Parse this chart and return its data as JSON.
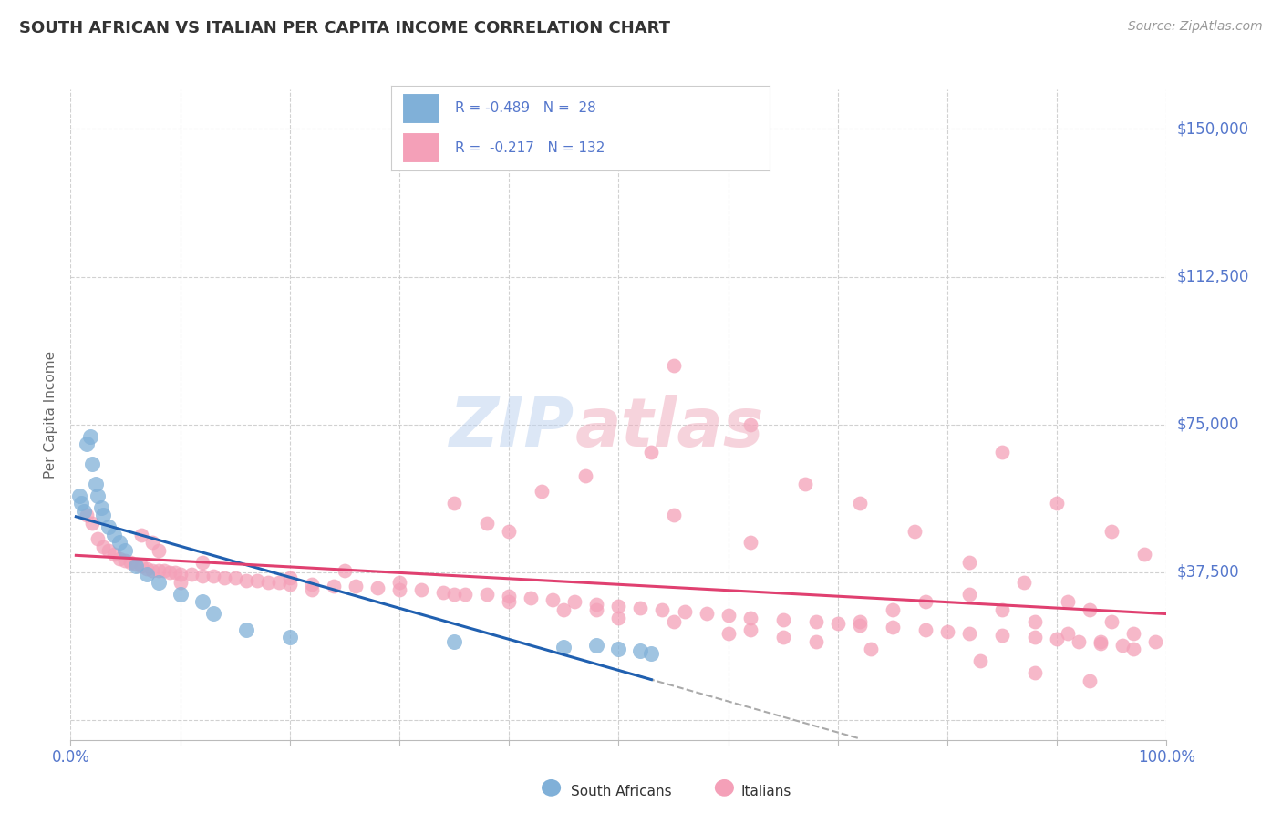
{
  "title": "SOUTH AFRICAN VS ITALIAN PER CAPITA INCOME CORRELATION CHART",
  "source": "Source: ZipAtlas.com",
  "ylabel": "Per Capita Income",
  "xlim": [
    0.0,
    100.0
  ],
  "ylim": [
    -5000,
    160000
  ],
  "yticks": [
    0,
    37500,
    75000,
    112500,
    150000
  ],
  "ytick_labels": [
    "",
    "$37,500",
    "$75,000",
    "$112,500",
    "$150,000"
  ],
  "background_color": "#ffffff",
  "grid_color": "#cccccc",
  "blue_color": "#80b0d8",
  "pink_color": "#f4a0b8",
  "blue_line_color": "#2060b0",
  "pink_line_color": "#e04070",
  "axis_label_color": "#5577cc",
  "south_africans_x": [
    0.8,
    1.0,
    1.2,
    1.5,
    1.8,
    2.0,
    2.3,
    2.5,
    2.8,
    3.0,
    3.5,
    4.0,
    4.5,
    5.0,
    6.0,
    7.0,
    8.0,
    10.0,
    12.0,
    13.0,
    16.0,
    20.0,
    35.0,
    45.0,
    48.0,
    50.0,
    52.0,
    53.0
  ],
  "south_africans_y": [
    57000,
    55000,
    53000,
    70000,
    72000,
    65000,
    60000,
    57000,
    54000,
    52000,
    49000,
    47000,
    45000,
    43000,
    39000,
    37000,
    35000,
    32000,
    30000,
    27000,
    23000,
    21000,
    20000,
    18500,
    19000,
    18000,
    17500,
    17000
  ],
  "italians_x": [
    1.5,
    2.0,
    2.5,
    3.0,
    3.5,
    4.0,
    4.5,
    5.0,
    5.5,
    6.0,
    6.5,
    7.0,
    7.5,
    8.0,
    8.5,
    9.0,
    9.5,
    10.0,
    11.0,
    12.0,
    13.0,
    14.0,
    15.0,
    16.0,
    17.0,
    18.0,
    19.0,
    20.0,
    22.0,
    24.0,
    26.0,
    28.0,
    30.0,
    32.0,
    34.0,
    36.0,
    38.0,
    40.0,
    42.0,
    44.0,
    46.0,
    48.0,
    50.0,
    52.0,
    54.0,
    56.0,
    58.0,
    60.0,
    62.0,
    65.0,
    68.0,
    70.0,
    72.0,
    75.0,
    78.0,
    80.0,
    82.0,
    85.0,
    88.0,
    90.0,
    92.0,
    94.0,
    96.0,
    35.0,
    38.0,
    43.0,
    47.0,
    53.0,
    55.0,
    62.0,
    55.0,
    62.0,
    67.0,
    72.0,
    77.0,
    82.0,
    87.0,
    91.0,
    93.0,
    95.0,
    97.0,
    99.0,
    6.5,
    7.5,
    12.0,
    20.0,
    25.0,
    30.0,
    35.0,
    40.0,
    45.0,
    50.0,
    55.0,
    62.0,
    65.0,
    68.0,
    72.0,
    75.0,
    78.0,
    82.0,
    85.0,
    88.0,
    91.0,
    94.0,
    97.0,
    40.0,
    10.0,
    8.0,
    85.0,
    90.0,
    95.0,
    98.0,
    22.0,
    48.0,
    60.0,
    73.0,
    83.0,
    88.0,
    93.0
  ],
  "italians_y": [
    52000,
    50000,
    46000,
    44000,
    43000,
    42000,
    41000,
    40500,
    40000,
    39500,
    39000,
    38500,
    38000,
    38000,
    38000,
    37500,
    37500,
    37000,
    37000,
    36500,
    36500,
    36000,
    36000,
    35500,
    35500,
    35000,
    35000,
    34500,
    34500,
    34000,
    34000,
    33500,
    33000,
    33000,
    32500,
    32000,
    32000,
    31500,
    31000,
    30500,
    30000,
    29500,
    29000,
    28500,
    28000,
    27500,
    27000,
    26500,
    26000,
    25500,
    25000,
    24500,
    24000,
    23500,
    23000,
    22500,
    22000,
    21500,
    21000,
    20500,
    20000,
    19500,
    19000,
    55000,
    50000,
    58000,
    62000,
    68000,
    52000,
    45000,
    90000,
    75000,
    60000,
    55000,
    48000,
    40000,
    35000,
    30000,
    28000,
    25000,
    22000,
    20000,
    47000,
    45000,
    40000,
    36000,
    38000,
    35000,
    32000,
    30000,
    28000,
    26000,
    25000,
    23000,
    21000,
    20000,
    25000,
    28000,
    30000,
    32000,
    28000,
    25000,
    22000,
    20000,
    18000,
    48000,
    35000,
    43000,
    68000,
    55000,
    48000,
    42000,
    33000,
    28000,
    22000,
    18000,
    15000,
    12000,
    10000
  ]
}
